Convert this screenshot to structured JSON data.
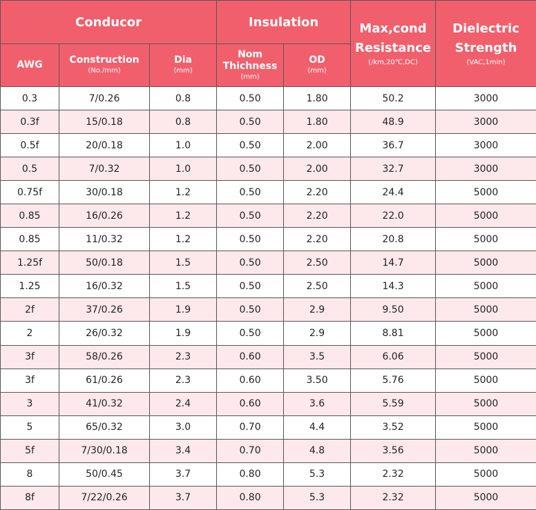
{
  "header": {
    "conductor": "Conducor",
    "insulation": "Insulation",
    "resistance": {
      "title": "Max,cond Resistance",
      "unit": "(/km,20℃,DC)"
    },
    "dielectric": {
      "title": "Dielectric Strength",
      "unit": "(VAC,1min)"
    },
    "awg": "AWG",
    "construction": {
      "title": "Construction",
      "unit": "(No./mm)"
    },
    "dia": {
      "title": "Dia",
      "unit": "(mm)"
    },
    "thickness": {
      "title": "Nom Thichness",
      "unit": "(mm)"
    },
    "od": {
      "title": "OD",
      "unit": "(mm)"
    }
  },
  "table": {
    "rows": [
      [
        "0.3",
        "7/0.26",
        "0.8",
        "0.50",
        "1.80",
        "50.2",
        "3000"
      ],
      [
        "0.3f",
        "15/0.18",
        "0.8",
        "0.50",
        "1.80",
        "48.9",
        "3000"
      ],
      [
        "0.5f",
        "20/0.18",
        "1.0",
        "0.50",
        "2.00",
        "36.7",
        "3000"
      ],
      [
        "0.5",
        "7/0.32",
        "1.0",
        "0.50",
        "2.00",
        "32.7",
        "3000"
      ],
      [
        "0.75f",
        "30/0.18",
        "1.2",
        "0.50",
        "2.20",
        "24.4",
        "5000"
      ],
      [
        "0.85",
        "16/0.26",
        "1.2",
        "0.50",
        "2.20",
        "22.0",
        "5000"
      ],
      [
        "0.85",
        "11/0.32",
        "1.2",
        "0.50",
        "2.20",
        "20.8",
        "5000"
      ],
      [
        "1.25f",
        "50/0.18",
        "1.5",
        "0.50",
        "2.50",
        "14.7",
        "5000"
      ],
      [
        "1.25",
        "16/0.32",
        "1.5",
        "0.50",
        "2.50",
        "14.3",
        "5000"
      ],
      [
        "2f",
        "37/0.26",
        "1.9",
        "0.50",
        "2.9",
        "9.50",
        "5000"
      ],
      [
        "2",
        "26/0.32",
        "1.9",
        "0.50",
        "2.9",
        "8.81",
        "5000"
      ],
      [
        "3f",
        "58/0.26",
        "2.3",
        "0.60",
        "3.5",
        "6.06",
        "5000"
      ],
      [
        "3f",
        "61/0.26",
        "2.3",
        "0.60",
        "3.50",
        "5.76",
        "5000"
      ],
      [
        "3",
        "41/0.32",
        "2.4",
        "0.60",
        "3.6",
        "5.59",
        "5000"
      ],
      [
        "5",
        "65/0.32",
        "3.0",
        "0.70",
        "4.4",
        "3.52",
        "5000"
      ],
      [
        "5f",
        "7/30/0.18",
        "3.4",
        "0.70",
        "4.8",
        "3.56",
        "5000"
      ],
      [
        "8",
        "50/0.45",
        "3.7",
        "0.80",
        "5.3",
        "2.32",
        "5000"
      ],
      [
        "8f",
        "7/22/0.26",
        "3.7",
        "0.80",
        "5.3",
        "2.32",
        "5000"
      ]
    ]
  }
}
